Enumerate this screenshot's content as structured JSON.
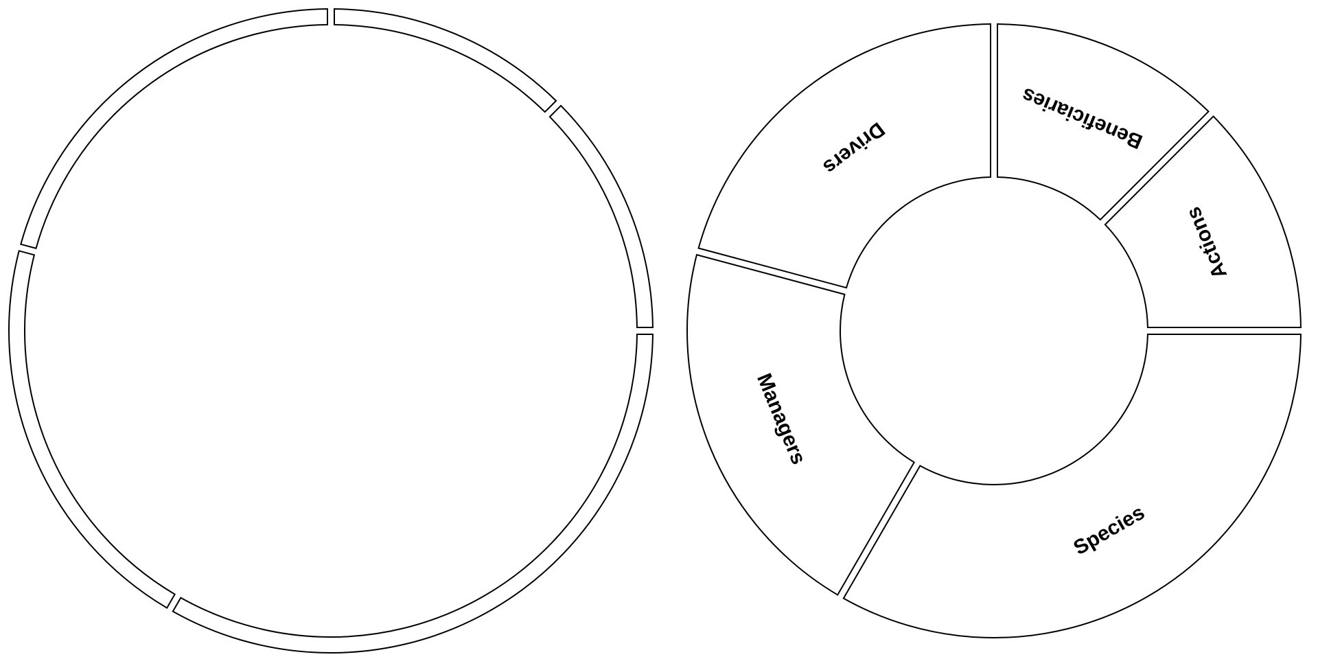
{
  "theme": {
    "background": "#ffffff",
    "stroke": "#000000",
    "fill": "#ffffff",
    "text": "#000000"
  },
  "outer_ring_wheel": {
    "segments": [
      {
        "start_deg": 0,
        "end_deg": 45
      },
      {
        "start_deg": 45,
        "end_deg": 90
      },
      {
        "start_deg": 90,
        "end_deg": 210
      },
      {
        "start_deg": 210,
        "end_deg": 285
      },
      {
        "start_deg": 285,
        "end_deg": 360
      }
    ]
  },
  "labeled_wheel": {
    "segments": [
      {
        "label": "Beneficiaries",
        "start_deg": 0,
        "end_deg": 45
      },
      {
        "label": "Actions",
        "start_deg": 45,
        "end_deg": 90
      },
      {
        "label": "Species",
        "start_deg": 90,
        "end_deg": 210
      },
      {
        "label": "Managers",
        "start_deg": 210,
        "end_deg": 285
      },
      {
        "label": "Drivers",
        "start_deg": 285,
        "end_deg": 360
      }
    ]
  }
}
